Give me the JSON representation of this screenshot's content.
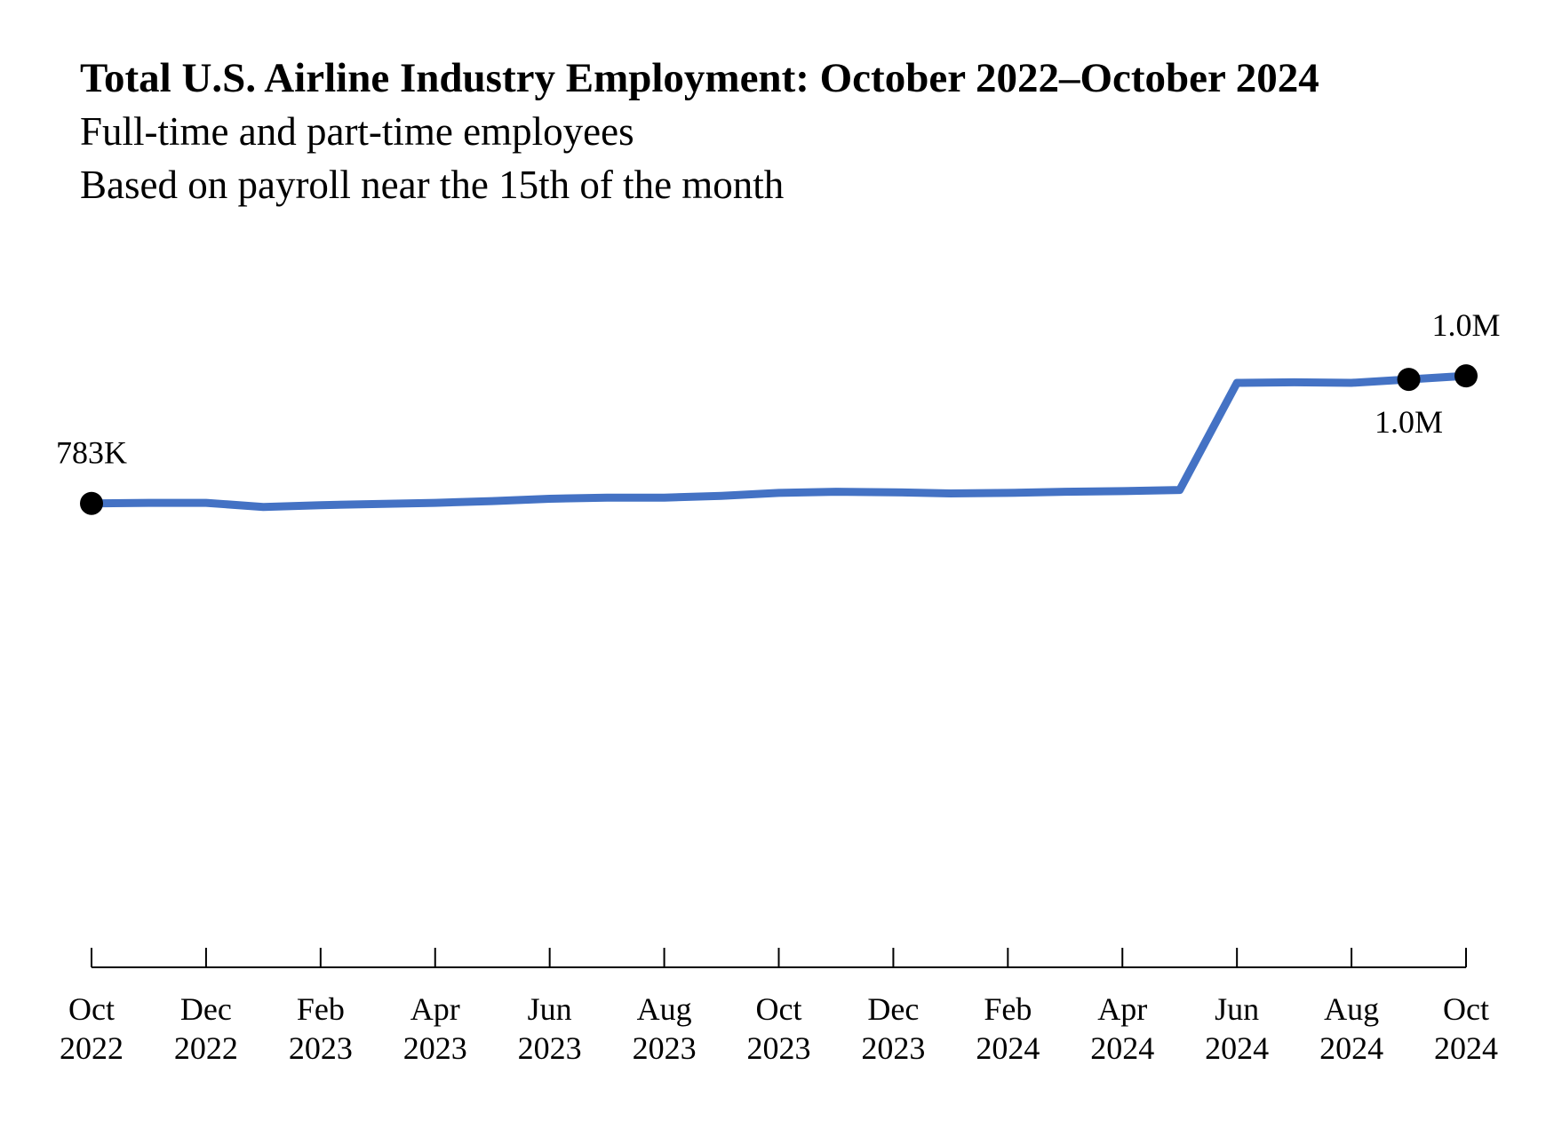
{
  "chart_data": {
    "type": "line",
    "title": "Total U.S. Airline Industry Employment: October 2022–October 2024",
    "subtitles": [
      "Full-time and part-time employees",
      "Based on payroll near the 15th of the month"
    ],
    "xlabel": "",
    "ylabel": "",
    "grid": false,
    "legend": "none",
    "ylim": [
      0,
      1150000
    ],
    "x_tick_labels": [
      {
        "month": "Oct",
        "year": "2022"
      },
      {
        "month": "Dec",
        "year": "2022"
      },
      {
        "month": "Feb",
        "year": "2023"
      },
      {
        "month": "Apr",
        "year": "2023"
      },
      {
        "month": "Jun",
        "year": "2023"
      },
      {
        "month": "Aug",
        "year": "2023"
      },
      {
        "month": "Oct",
        "year": "2023"
      },
      {
        "month": "Dec",
        "year": "2023"
      },
      {
        "month": "Feb",
        "year": "2024"
      },
      {
        "month": "Apr",
        "year": "2024"
      },
      {
        "month": "Jun",
        "year": "2024"
      },
      {
        "month": "Aug",
        "year": "2024"
      },
      {
        "month": "Oct",
        "year": "2024"
      }
    ],
    "x": [
      "2022-10",
      "2022-11",
      "2022-12",
      "2023-01",
      "2023-02",
      "2023-03",
      "2023-04",
      "2023-05",
      "2023-06",
      "2023-07",
      "2023-08",
      "2023-09",
      "2023-10",
      "2023-11",
      "2023-12",
      "2024-01",
      "2024-02",
      "2024-03",
      "2024-04",
      "2024-05",
      "2024-06",
      "2024-07",
      "2024-08",
      "2024-09",
      "2024-10"
    ],
    "series": [
      {
        "values": [
          783000,
          784000,
          784000,
          777000,
          780000,
          782000,
          784000,
          787000,
          791000,
          793000,
          793000,
          796000,
          801000,
          803000,
          802000,
          800000,
          801000,
          803000,
          804000,
          806000,
          989000,
          990000,
          989000,
          995000,
          1001000
        ],
        "color": "#4472C4"
      }
    ],
    "markers": [
      {
        "x": "2022-10",
        "label": "783K",
        "label_position": "above"
      },
      {
        "x": "2024-09",
        "label": "1.0M",
        "label_position": "below"
      },
      {
        "x": "2024-10",
        "label": "1.0M",
        "label_position": "above"
      }
    ]
  }
}
